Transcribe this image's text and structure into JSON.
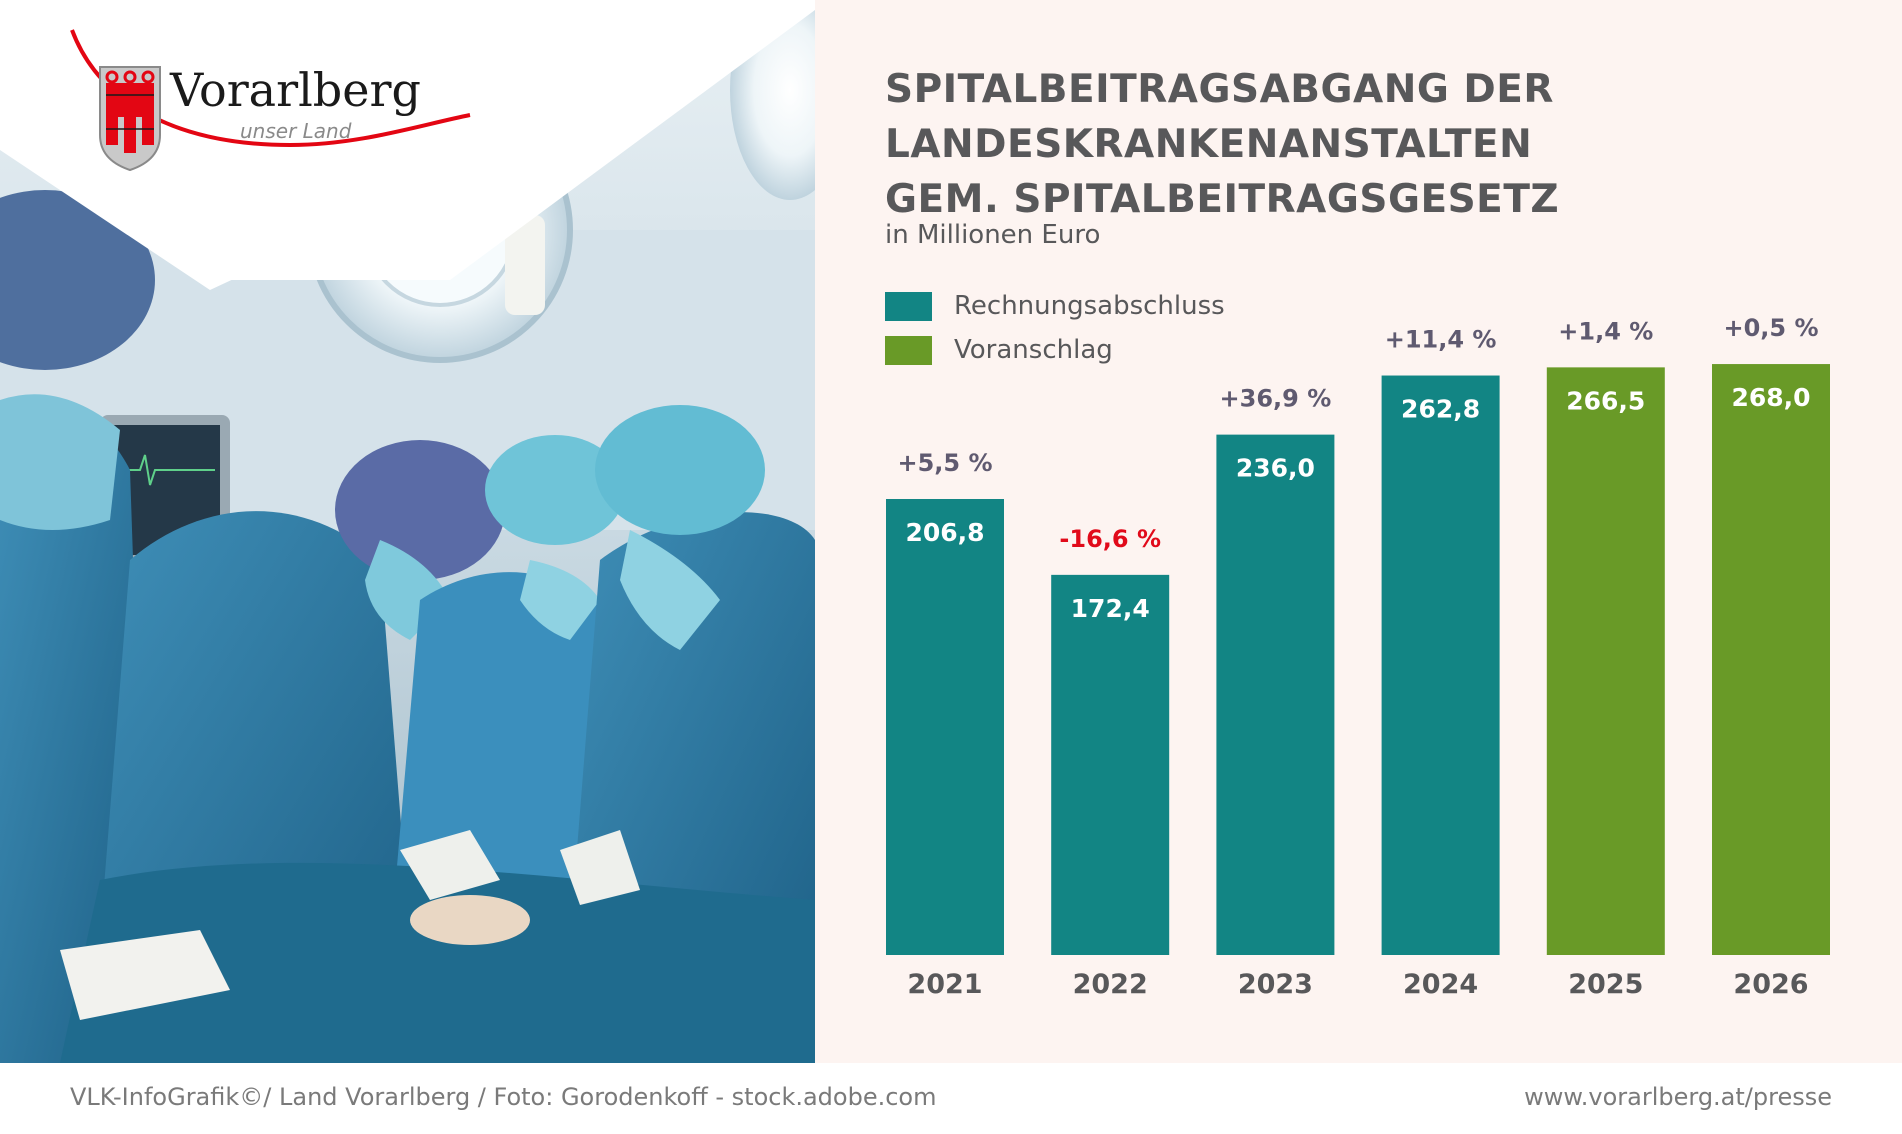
{
  "logo": {
    "name": "Vorarlberg",
    "tagline": "unser Land"
  },
  "colors": {
    "actual": "#128584",
    "budget": "#699a27",
    "title": "#58585a",
    "pct_positive": "#5f5a70",
    "pct_negative": "#e10a1a",
    "panel_bg": "#fdf4f1"
  },
  "chart_data": {
    "type": "bar",
    "title": [
      "SPITALBEITRAGSABGANG DER",
      "LANDESKRANKENANSTALTEN",
      "GEM. SPITALBEITRAGSGESETZ"
    ],
    "subtitle": "in Millionen Euro",
    "categories": [
      "2021",
      "2022",
      "2023",
      "2024",
      "2025",
      "2026"
    ],
    "values": [
      206.8,
      172.4,
      236.0,
      262.8,
      266.5,
      268.0
    ],
    "value_labels": [
      "206,8",
      "172,4",
      "236,0",
      "262,8",
      "266,5",
      "268,0"
    ],
    "change_labels": [
      "+5,5 %",
      "-16,6 %",
      "+36,9 %",
      "+11,4 %",
      "+1,4 %",
      "+0,5 %"
    ],
    "series_of_bar": [
      "Rechnungsabschluss",
      "Rechnungsabschluss",
      "Rechnungsabschluss",
      "Rechnungsabschluss",
      "Voranschlag",
      "Voranschlag"
    ],
    "legend": [
      {
        "name": "Rechnungsabschluss",
        "color": "#128584"
      },
      {
        "name": "Voranschlag",
        "color": "#699a27"
      }
    ],
    "legend_position": "top-left",
    "xlabel": "",
    "ylabel": "",
    "ylim": [
      0,
      268
    ],
    "grid": false
  },
  "footer": {
    "credit": "VLK-InfoGrafik©/ Land Vorarlberg / Foto: Gorodenkoff - stock.adobe.com",
    "url": "www.vorarlberg.at/presse"
  }
}
